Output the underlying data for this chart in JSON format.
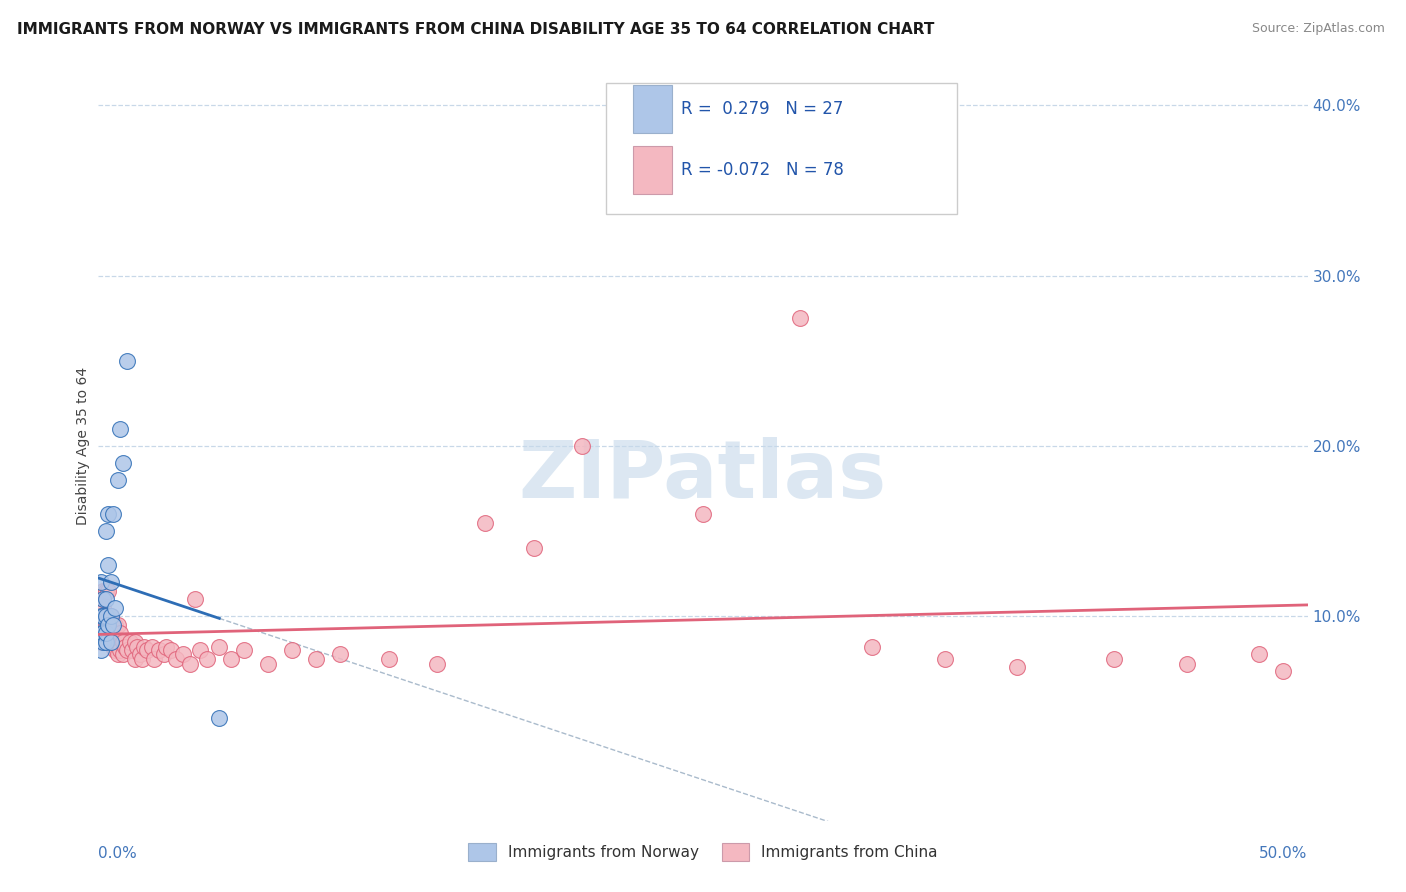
{
  "title": "IMMIGRANTS FROM NORWAY VS IMMIGRANTS FROM CHINA DISABILITY AGE 35 TO 64 CORRELATION CHART",
  "source": "Source: ZipAtlas.com",
  "ylabel": "Disability Age 35 to 64",
  "ylabel_right_vals": [
    0.1,
    0.2,
    0.3,
    0.4
  ],
  "xmin": 0.0,
  "xmax": 0.5,
  "ymin": -0.02,
  "ymax": 0.42,
  "norway_R": 0.279,
  "norway_N": 27,
  "china_R": -0.072,
  "china_N": 78,
  "norway_color": "#aec6e8",
  "china_color": "#f4b8c1",
  "norway_line_color": "#2d6db5",
  "china_line_color": "#e0637a",
  "norway_scatter_x": [
    0.001,
    0.001,
    0.001,
    0.001,
    0.002,
    0.002,
    0.002,
    0.002,
    0.003,
    0.003,
    0.003,
    0.003,
    0.003,
    0.004,
    0.004,
    0.004,
    0.005,
    0.005,
    0.005,
    0.006,
    0.006,
    0.007,
    0.008,
    0.009,
    0.01,
    0.012,
    0.05
  ],
  "norway_scatter_y": [
    0.08,
    0.09,
    0.1,
    0.12,
    0.085,
    0.09,
    0.1,
    0.11,
    0.085,
    0.09,
    0.1,
    0.11,
    0.15,
    0.095,
    0.13,
    0.16,
    0.085,
    0.1,
    0.12,
    0.095,
    0.16,
    0.105,
    0.18,
    0.21,
    0.19,
    0.25,
    0.04
  ],
  "china_scatter_x": [
    0.001,
    0.001,
    0.001,
    0.002,
    0.002,
    0.002,
    0.002,
    0.002,
    0.003,
    0.003,
    0.003,
    0.003,
    0.003,
    0.004,
    0.004,
    0.004,
    0.004,
    0.005,
    0.005,
    0.005,
    0.005,
    0.006,
    0.006,
    0.006,
    0.007,
    0.007,
    0.007,
    0.008,
    0.008,
    0.008,
    0.009,
    0.009,
    0.01,
    0.01,
    0.011,
    0.012,
    0.013,
    0.014,
    0.015,
    0.015,
    0.016,
    0.017,
    0.018,
    0.019,
    0.02,
    0.022,
    0.023,
    0.025,
    0.027,
    0.028,
    0.03,
    0.032,
    0.035,
    0.038,
    0.04,
    0.042,
    0.045,
    0.05,
    0.055,
    0.06,
    0.07,
    0.08,
    0.09,
    0.1,
    0.12,
    0.14,
    0.16,
    0.18,
    0.2,
    0.25,
    0.29,
    0.32,
    0.35,
    0.38,
    0.42,
    0.45,
    0.48,
    0.49
  ],
  "china_scatter_y": [
    0.095,
    0.1,
    0.085,
    0.095,
    0.1,
    0.105,
    0.11,
    0.115,
    0.085,
    0.09,
    0.095,
    0.1,
    0.115,
    0.085,
    0.09,
    0.1,
    0.115,
    0.085,
    0.09,
    0.095,
    0.1,
    0.082,
    0.088,
    0.095,
    0.08,
    0.087,
    0.095,
    0.078,
    0.085,
    0.095,
    0.08,
    0.09,
    0.078,
    0.085,
    0.082,
    0.08,
    0.085,
    0.08,
    0.075,
    0.085,
    0.082,
    0.078,
    0.075,
    0.082,
    0.08,
    0.082,
    0.075,
    0.08,
    0.078,
    0.082,
    0.08,
    0.075,
    0.078,
    0.072,
    0.11,
    0.08,
    0.075,
    0.082,
    0.075,
    0.08,
    0.072,
    0.08,
    0.075,
    0.078,
    0.075,
    0.072,
    0.155,
    0.14,
    0.2,
    0.16,
    0.275,
    0.082,
    0.075,
    0.07,
    0.075,
    0.072,
    0.078,
    0.068
  ],
  "watermark": "ZIPatlas",
  "grid_color": "#c8d8e8",
  "background_color": "#ffffff"
}
